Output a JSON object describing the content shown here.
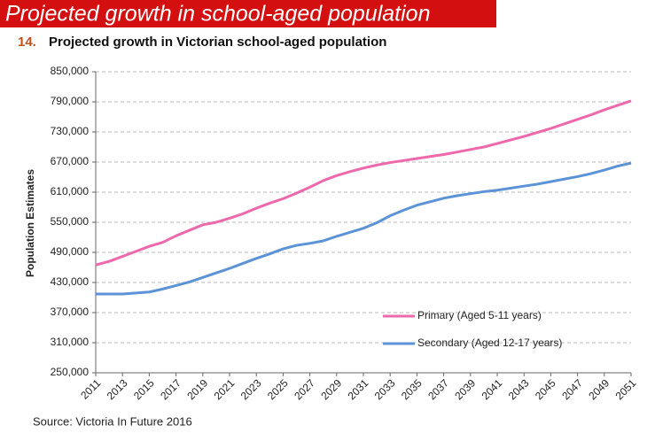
{
  "banner": "Projected growth in school-aged population",
  "chart_data": {
    "type": "line",
    "figure_number": "14.",
    "title": "Projected growth in Victorian school-aged population",
    "y_label": "Population Estimates",
    "source": "Source: Victoria In Future 2016",
    "x": [
      2011,
      2012,
      2013,
      2014,
      2015,
      2016,
      2017,
      2018,
      2019,
      2020,
      2021,
      2022,
      2023,
      2024,
      2025,
      2026,
      2027,
      2028,
      2029,
      2030,
      2031,
      2032,
      2033,
      2034,
      2035,
      2036,
      2037,
      2038,
      2039,
      2040,
      2041,
      2042,
      2043,
      2044,
      2045,
      2046,
      2047,
      2048,
      2049,
      2050,
      2051
    ],
    "series": [
      {
        "name": "Primary (Aged 5-11 years)",
        "color": "#ee68ac",
        "values": [
          465000,
          472000,
          482000,
          492000,
          502000,
          510000,
          523000,
          534000,
          545000,
          550000,
          558000,
          567000,
          578000,
          588000,
          597000,
          608000,
          620000,
          633000,
          643000,
          651000,
          658000,
          664000,
          669000,
          673000,
          677000,
          681000,
          685000,
          690000,
          695000,
          700000,
          707000,
          714000,
          721000,
          729000,
          737000,
          746000,
          755000,
          764000,
          774000,
          783000,
          792000
        ]
      },
      {
        "name": "Secondary (Aged 12-17 years)",
        "color": "#5b93d6",
        "values": [
          407000,
          407000,
          407000,
          409000,
          411000,
          417000,
          424000,
          431000,
          440000,
          449000,
          458000,
          468000,
          478000,
          487000,
          497000,
          504000,
          508000,
          513000,
          522000,
          530000,
          538000,
          549000,
          563000,
          574000,
          584000,
          591000,
          598000,
          603000,
          607000,
          611000,
          614000,
          618000,
          622000,
          626000,
          631000,
          636000,
          641000,
          647000,
          654000,
          662000,
          668000
        ]
      }
    ],
    "xlim": [
      2011,
      2051
    ],
    "xticks": [
      2011,
      2013,
      2015,
      2017,
      2019,
      2021,
      2023,
      2025,
      2027,
      2029,
      2031,
      2033,
      2035,
      2037,
      2039,
      2041,
      2043,
      2045,
      2047,
      2049,
      2051
    ],
    "ylim": [
      250000,
      850000
    ],
    "yticks": [
      {
        "value": 250000,
        "label": "250,000"
      },
      {
        "value": 310000,
        "label": "310,000"
      },
      {
        "value": 370000,
        "label": "370,000"
      },
      {
        "value": 430000,
        "label": "430,000"
      },
      {
        "value": 490000,
        "label": "490,000"
      },
      {
        "value": 550000,
        "label": "550,000"
      },
      {
        "value": 610000,
        "label": "610,000"
      },
      {
        "value": 670000,
        "label": "670,000"
      },
      {
        "value": 730000,
        "label": "730,000"
      },
      {
        "value": 790000,
        "label": "790,000"
      },
      {
        "value": 850000,
        "label": "850,000"
      }
    ],
    "grid": true,
    "legend": "lower-center"
  }
}
